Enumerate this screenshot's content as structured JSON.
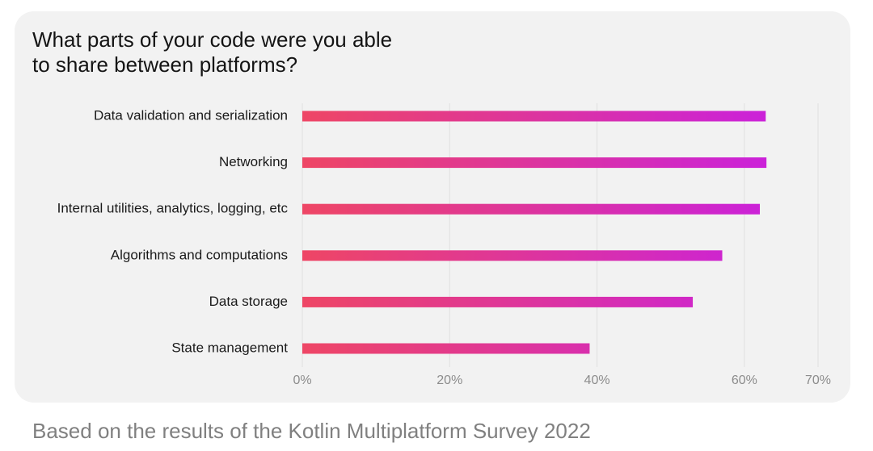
{
  "footnote": "Based on the results of the Kotlin Multiplatform Survey 2022",
  "colors": {
    "card_background": "#f2f2f2",
    "bar_gradient_start": "#ee4665",
    "bar_gradient_end": "#c71ee6",
    "gridline": "#e0e0e0",
    "tick_text": "#8c8c8c",
    "label_text": "#1a1a1a"
  },
  "chart_data": {
    "type": "bar",
    "orientation": "horizontal",
    "title": "What parts of your code were you able\nto share between platforms?",
    "categories": [
      "Data validation and serialization",
      "Networking",
      "Internal utilities, analytics, logging, etc",
      "Algorithms and computations",
      "Data storage",
      "State management"
    ],
    "values": [
      62.9,
      63.0,
      62.1,
      57.0,
      53.0,
      39.0
    ],
    "xlabel": "",
    "ylabel": "",
    "xlim": [
      0,
      70
    ],
    "xticks": [
      0,
      20,
      40,
      60,
      70
    ],
    "xtick_labels": [
      "0%",
      "20%",
      "40%",
      "60%",
      "70%"
    ],
    "grid": true,
    "legend": "none"
  }
}
